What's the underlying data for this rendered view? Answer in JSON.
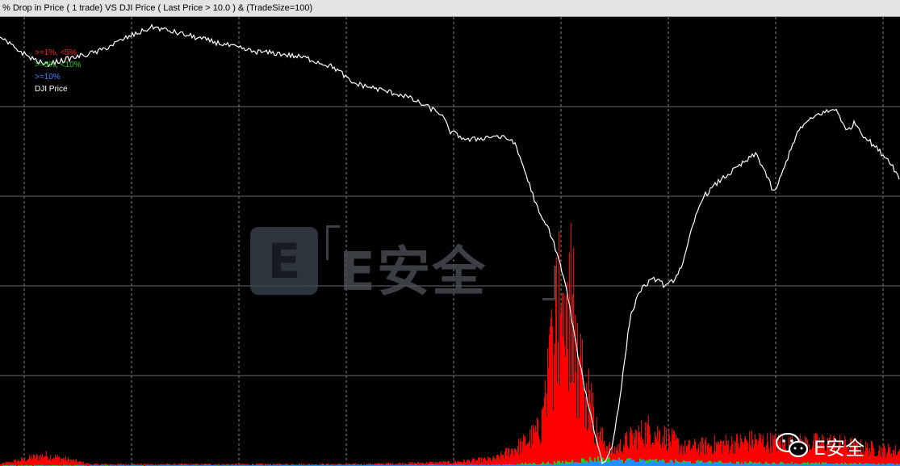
{
  "window": {
    "title": "% Drop in Price ( 1 trade)  VS DJI Price  ( Last Price > 10.0 ) & (TradeSize=100)"
  },
  "legend": [
    {
      "label": ">=1%, <5%",
      "color": "#ff2020"
    },
    {
      "label": ">=5%, <10%",
      "color": "#22cc22"
    },
    {
      "label": ">=10%",
      "color": "#4488ff"
    },
    {
      "label": "DJI Price",
      "color": "#ffffff"
    }
  ],
  "watermark": {
    "logo_letter": "E",
    "center_text": "E安全",
    "corner_text": "E安全",
    "icon": "wechat-icon"
  },
  "chart_data": {
    "type": "bar",
    "title": "% Drop in Price ( 1 trade)  VS DJI Price  ( Last Price > 10.0 ) & (TradeSize=100)",
    "xlabel": "",
    "ylabel": "",
    "grid": true,
    "legend_position": "top-left",
    "colors": {
      "background": "#000000",
      "grid": "#8a8a8a",
      "red": "#ff0000",
      "green": "#22cc22",
      "blue": "#1e90ff",
      "line": "#ffffff"
    },
    "series": [
      {
        "name": ">=1%, <5%",
        "type": "bar",
        "peaks": [
          [
            0.0,
            0.01
          ],
          [
            0.05,
            0.06
          ],
          [
            0.1,
            0.01
          ],
          [
            0.2,
            0.01
          ],
          [
            0.3,
            0.01
          ],
          [
            0.4,
            0.01
          ],
          [
            0.5,
            0.02
          ],
          [
            0.55,
            0.04
          ],
          [
            0.58,
            0.12
          ],
          [
            0.6,
            0.2
          ],
          [
            0.61,
            0.45
          ],
          [
            0.62,
            0.78
          ],
          [
            0.625,
            0.95
          ],
          [
            0.63,
            0.6
          ],
          [
            0.635,
            0.88
          ],
          [
            0.64,
            0.5
          ],
          [
            0.65,
            0.4
          ],
          [
            0.66,
            0.22
          ],
          [
            0.67,
            0.14
          ],
          [
            0.68,
            0.08
          ],
          [
            0.7,
            0.15
          ],
          [
            0.72,
            0.2
          ],
          [
            0.74,
            0.16
          ],
          [
            0.76,
            0.1
          ],
          [
            0.8,
            0.12
          ],
          [
            0.84,
            0.14
          ],
          [
            0.88,
            0.12
          ],
          [
            0.92,
            0.13
          ],
          [
            0.96,
            0.1
          ],
          [
            1.0,
            0.08
          ]
        ]
      },
      {
        "name": ">=5%, <10%",
        "type": "bar",
        "peaks": [
          [
            0.0,
            0.004
          ],
          [
            0.55,
            0.006
          ],
          [
            0.62,
            0.02
          ],
          [
            0.66,
            0.04
          ],
          [
            0.7,
            0.03
          ],
          [
            0.8,
            0.02
          ],
          [
            1.0,
            0.01
          ]
        ]
      },
      {
        "name": ">=10%",
        "type": "bar",
        "peaks": [
          [
            0.0,
            0.002
          ],
          [
            0.6,
            0.006
          ],
          [
            0.66,
            0.02
          ],
          [
            0.7,
            0.03
          ],
          [
            0.75,
            0.02
          ],
          [
            0.85,
            0.01
          ],
          [
            1.0,
            0.01
          ]
        ]
      },
      {
        "name": "DJI Price",
        "type": "line",
        "points": [
          [
            0.0,
            0.96
          ],
          [
            0.03,
            0.92
          ],
          [
            0.05,
            0.9
          ],
          [
            0.08,
            0.915
          ],
          [
            0.11,
            0.93
          ],
          [
            0.14,
            0.96
          ],
          [
            0.17,
            0.985
          ],
          [
            0.19,
            0.975
          ],
          [
            0.22,
            0.96
          ],
          [
            0.25,
            0.945
          ],
          [
            0.28,
            0.93
          ],
          [
            0.31,
            0.925
          ],
          [
            0.34,
            0.915
          ],
          [
            0.37,
            0.895
          ],
          [
            0.38,
            0.88
          ],
          [
            0.39,
            0.86
          ],
          [
            0.41,
            0.85
          ],
          [
            0.43,
            0.84
          ],
          [
            0.45,
            0.83
          ],
          [
            0.47,
            0.81
          ],
          [
            0.49,
            0.79
          ],
          [
            0.5,
            0.75
          ],
          [
            0.52,
            0.73
          ],
          [
            0.55,
            0.74
          ],
          [
            0.57,
            0.73
          ],
          [
            0.58,
            0.68
          ],
          [
            0.59,
            0.62
          ],
          [
            0.6,
            0.56
          ],
          [
            0.61,
            0.53
          ],
          [
            0.62,
            0.47
          ],
          [
            0.63,
            0.39
          ],
          [
            0.64,
            0.27
          ],
          [
            0.65,
            0.17
          ],
          [
            0.66,
            0.08
          ],
          [
            0.67,
            0.0
          ],
          [
            0.68,
            0.04
          ],
          [
            0.69,
            0.17
          ],
          [
            0.7,
            0.33
          ],
          [
            0.71,
            0.39
          ],
          [
            0.72,
            0.41
          ],
          [
            0.73,
            0.42
          ],
          [
            0.74,
            0.4
          ],
          [
            0.75,
            0.42
          ],
          [
            0.76,
            0.46
          ],
          [
            0.77,
            0.54
          ],
          [
            0.78,
            0.6
          ],
          [
            0.79,
            0.62
          ],
          [
            0.8,
            0.64
          ],
          [
            0.82,
            0.67
          ],
          [
            0.84,
            0.7
          ],
          [
            0.85,
            0.66
          ],
          [
            0.86,
            0.61
          ],
          [
            0.87,
            0.66
          ],
          [
            0.88,
            0.72
          ],
          [
            0.89,
            0.76
          ],
          [
            0.91,
            0.79
          ],
          [
            0.93,
            0.8
          ],
          [
            0.94,
            0.75
          ],
          [
            0.95,
            0.77
          ],
          [
            0.96,
            0.74
          ],
          [
            0.97,
            0.72
          ],
          [
            0.98,
            0.7
          ],
          [
            0.99,
            0.68
          ],
          [
            1.0,
            0.64
          ]
        ]
      }
    ]
  }
}
